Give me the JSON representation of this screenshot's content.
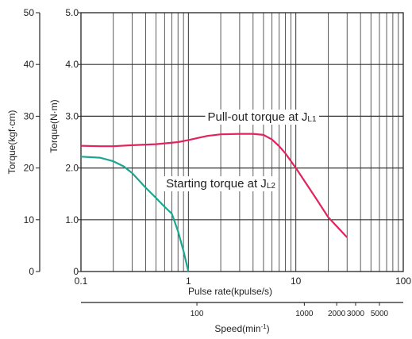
{
  "chart_data": {
    "type": "line",
    "xscale": "log",
    "xlim": [
      0.1,
      100
    ],
    "ylim": [
      0,
      5.0
    ],
    "grid": true,
    "xlabel": "Pulse rate(kpulse/s)",
    "ylabel_left_outer": "Torque(kgf·cm)",
    "ylabel_left_inner": "Torque(N·m)",
    "x_ticks": [
      {
        "value": 0.1,
        "label": "0.1"
      },
      {
        "value": 1,
        "label": "1"
      },
      {
        "value": 10,
        "label": "10"
      },
      {
        "value": 100,
        "label": "100"
      }
    ],
    "y_ticks_nm": [
      {
        "value": 0,
        "label": "0"
      },
      {
        "value": 1.0,
        "label": "1.0"
      },
      {
        "value": 2.0,
        "label": "2.0"
      },
      {
        "value": 3.0,
        "label": "3.0"
      },
      {
        "value": 4.0,
        "label": "4.0"
      },
      {
        "value": 5.0,
        "label": "5.0"
      }
    ],
    "y_ticks_kgfcm": [
      {
        "value": 0,
        "label": "0"
      },
      {
        "value": 10,
        "label": "10"
      },
      {
        "value": 20,
        "label": "20"
      },
      {
        "value": 30,
        "label": "30"
      },
      {
        "value": 40,
        "label": "40"
      },
      {
        "value": 50,
        "label": "50"
      }
    ],
    "speed_axis": {
      "label": "Speed(min",
      "label_sup": "-1",
      "label_close": ")",
      "ticks": [
        {
          "kpps": 1.2,
          "label": "100"
        },
        {
          "kpps": 12,
          "label": "1000"
        },
        {
          "kpps": 24,
          "label": "2000"
        },
        {
          "kpps": 36,
          "label": "3000"
        },
        {
          "kpps": 60,
          "label": "5000"
        }
      ]
    },
    "series": [
      {
        "name": "Pull-out torque at J",
        "subscript": "L1",
        "color": "#e0245e",
        "x": [
          0.1,
          0.15,
          0.2,
          0.3,
          0.5,
          0.8,
          1.0,
          1.5,
          2.0,
          3.0,
          4.0,
          5.0,
          6.0,
          7.0,
          8.0,
          10.0,
          15.0,
          20.0,
          30.0
        ],
        "y": [
          2.43,
          2.42,
          2.42,
          2.44,
          2.46,
          2.5,
          2.54,
          2.62,
          2.65,
          2.66,
          2.66,
          2.64,
          2.55,
          2.42,
          2.28,
          2.0,
          1.45,
          1.05,
          0.66
        ]
      },
      {
        "name": "Starting torque at J",
        "subscript": "L2",
        "color": "#1aa68f",
        "x": [
          0.1,
          0.15,
          0.2,
          0.25,
          0.3,
          0.4,
          0.5,
          0.6,
          0.7,
          0.8,
          0.9,
          1.0
        ],
        "y": [
          2.22,
          2.2,
          2.13,
          2.03,
          1.9,
          1.62,
          1.42,
          1.25,
          1.12,
          0.78,
          0.4,
          0.0
        ]
      }
    ]
  }
}
